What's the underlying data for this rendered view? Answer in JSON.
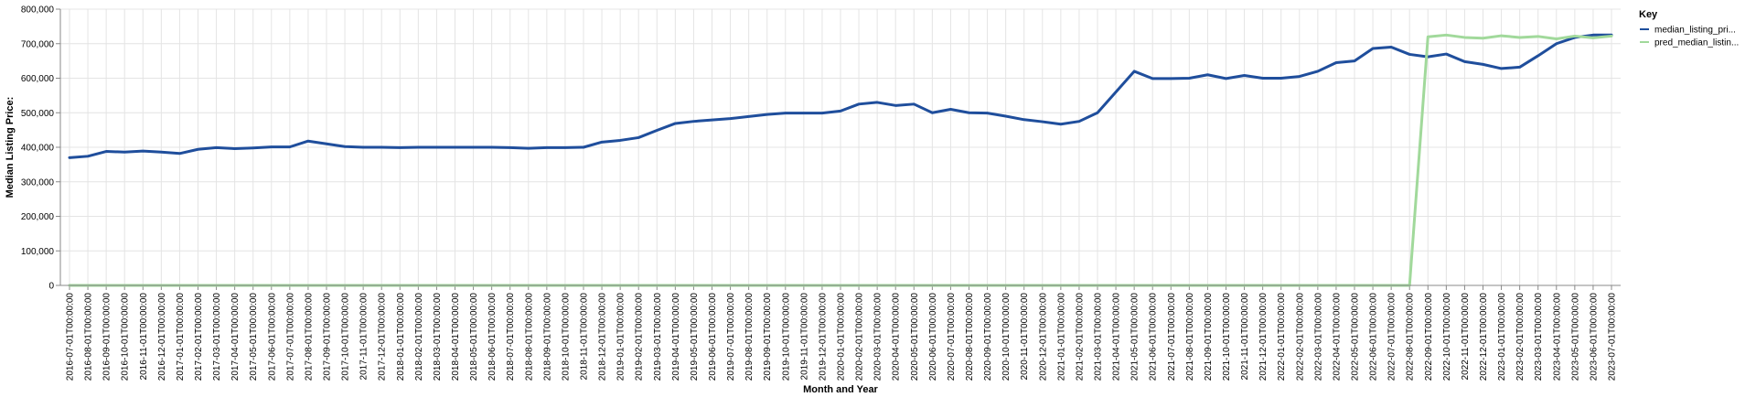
{
  "chart_data": {
    "type": "line",
    "xlabel": "Month and Year",
    "ylabel": "Median Listing Price:",
    "ylim": [
      0,
      800000
    ],
    "yticks": [
      "0",
      "100,000",
      "200,000",
      "300,000",
      "400,000",
      "500,000",
      "600,000",
      "700,000",
      "800,000"
    ],
    "grid": true,
    "legend": {
      "title": "Key",
      "placement": "right"
    },
    "categories": [
      "2016-07-01T00:00:00",
      "2016-08-01T00:00:00",
      "2016-09-01T00:00:00",
      "2016-10-01T00:00:00",
      "2016-11-01T00:00:00",
      "2016-12-01T00:00:00",
      "2017-01-01T00:00:00",
      "2017-02-01T00:00:00",
      "2017-03-01T00:00:00",
      "2017-04-01T00:00:00",
      "2017-05-01T00:00:00",
      "2017-06-01T00:00:00",
      "2017-07-01T00:00:00",
      "2017-08-01T00:00:00",
      "2017-09-01T00:00:00",
      "2017-10-01T00:00:00",
      "2017-11-01T00:00:00",
      "2017-12-01T00:00:00",
      "2018-01-01T00:00:00",
      "2018-02-01T00:00:00",
      "2018-03-01T00:00:00",
      "2018-04-01T00:00:00",
      "2018-05-01T00:00:00",
      "2018-06-01T00:00:00",
      "2018-07-01T00:00:00",
      "2018-08-01T00:00:00",
      "2018-09-01T00:00:00",
      "2018-10-01T00:00:00",
      "2018-11-01T00:00:00",
      "2018-12-01T00:00:00",
      "2019-01-01T00:00:00",
      "2019-02-01T00:00:00",
      "2019-03-01T00:00:00",
      "2019-04-01T00:00:00",
      "2019-05-01T00:00:00",
      "2019-06-01T00:00:00",
      "2019-07-01T00:00:00",
      "2019-08-01T00:00:00",
      "2019-09-01T00:00:00",
      "2019-10-01T00:00:00",
      "2019-11-01T00:00:00",
      "2019-12-01T00:00:00",
      "2020-01-01T00:00:00",
      "2020-02-01T00:00:00",
      "2020-03-01T00:00:00",
      "2020-04-01T00:00:00",
      "2020-05-01T00:00:00",
      "2020-06-01T00:00:00",
      "2020-07-01T00:00:00",
      "2020-08-01T00:00:00",
      "2020-09-01T00:00:00",
      "2020-10-01T00:00:00",
      "2020-11-01T00:00:00",
      "2020-12-01T00:00:00",
      "2021-01-01T00:00:00",
      "2021-02-01T00:00:00",
      "2021-03-01T00:00:00",
      "2021-04-01T00:00:00",
      "2021-05-01T00:00:00",
      "2021-06-01T00:00:00",
      "2021-07-01T00:00:00",
      "2021-08-01T00:00:00",
      "2021-09-01T00:00:00",
      "2021-10-01T00:00:00",
      "2021-11-01T00:00:00",
      "2021-12-01T00:00:00",
      "2022-01-01T00:00:00",
      "2022-02-01T00:00:00",
      "2022-03-01T00:00:00",
      "2022-04-01T00:00:00",
      "2022-05-01T00:00:00",
      "2022-06-01T00:00:00",
      "2022-07-01T00:00:00",
      "2022-08-01T00:00:00",
      "2022-09-01T00:00:00",
      "2022-10-01T00:00:00",
      "2022-11-01T00:00:00",
      "2022-12-01T00:00:00",
      "2023-01-01T00:00:00",
      "2023-02-01T00:00:00",
      "2023-03-01T00:00:00",
      "2023-04-01T00:00:00",
      "2023-05-01T00:00:00",
      "2023-06-01T00:00:00",
      "2023-07-01T00:00:00"
    ],
    "series": [
      {
        "name": "median_listing_pri...",
        "color": "#1f4e9c",
        "values": [
          370000,
          374000,
          388000,
          386000,
          389000,
          386000,
          382000,
          394000,
          399000,
          396000,
          398000,
          401000,
          401000,
          418000,
          410000,
          402000,
          400000,
          400000,
          399000,
          400000,
          400000,
          400000,
          400000,
          400000,
          399000,
          397000,
          399000,
          399000,
          400000,
          415000,
          420000,
          428000,
          449000,
          469000,
          475000,
          479000,
          483000,
          489000,
          495000,
          499000,
          499000,
          499000,
          505000,
          525000,
          530000,
          521000,
          525000,
          500000,
          510000,
          500000,
          499000,
          490000,
          480000,
          474000,
          467000,
          475000,
          500000,
          560000,
          620000,
          599000,
          599000,
          600000,
          610000,
          599000,
          608000,
          600000,
          600000,
          605000,
          620000,
          645000,
          650000,
          686000,
          690000,
          669000,
          662000,
          670000,
          648000,
          640000,
          628000,
          632000,
          665000,
          700000,
          718000,
          725000,
          725000
        ]
      },
      {
        "name": "pred_median_listin...",
        "color": "#a1d99b",
        "values": [
          0,
          0,
          0,
          0,
          0,
          0,
          0,
          0,
          0,
          0,
          0,
          0,
          0,
          0,
          0,
          0,
          0,
          0,
          0,
          0,
          0,
          0,
          0,
          0,
          0,
          0,
          0,
          0,
          0,
          0,
          0,
          0,
          0,
          0,
          0,
          0,
          0,
          0,
          0,
          0,
          0,
          0,
          0,
          0,
          0,
          0,
          0,
          0,
          0,
          0,
          0,
          0,
          0,
          0,
          0,
          0,
          0,
          0,
          0,
          0,
          0,
          0,
          0,
          0,
          0,
          0,
          0,
          0,
          0,
          0,
          0,
          0,
          0,
          0,
          720000,
          725000,
          718000,
          716000,
          723000,
          718000,
          721000,
          714000,
          722000,
          717000,
          722000
        ]
      }
    ]
  }
}
